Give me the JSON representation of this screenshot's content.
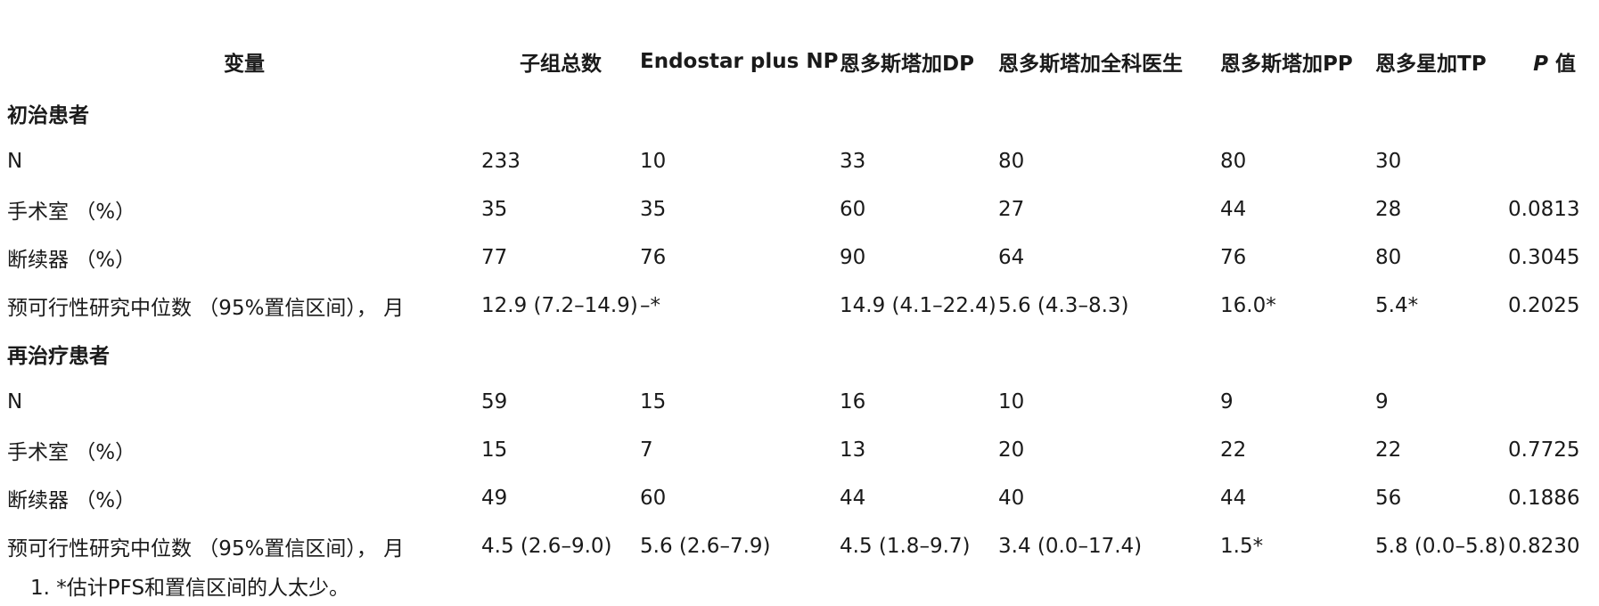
{
  "table": {
    "headers": [
      "变量",
      "子组总数",
      "Endostar plus NP",
      "恩多斯塔加DP",
      "恩多斯塔加全科医生",
      "恩多斯塔加PP",
      "恩多星加TP"
    ],
    "p_header_italic": "P",
    "p_header_rest": " 值",
    "groups": [
      {
        "title": "初治患者",
        "rows": [
          [
            "N",
            "233",
            "10",
            "33",
            "80",
            "80",
            "30",
            ""
          ],
          [
            "手术室 （%）",
            "35",
            "35",
            "60",
            "27",
            "44",
            "28",
            "0.0813"
          ],
          [
            "断续器 （%）",
            "77",
            "76",
            "90",
            "64",
            "76",
            "80",
            "0.3045"
          ],
          [
            "预可行性研究中位数 （95%置信区间），  月",
            "12.9 (7.2–14.9)",
            "–*",
            "14.9 (4.1–22.4)",
            "5.6 (4.3–8.3)",
            "16.0*",
            "5.4*",
            "0.2025"
          ]
        ]
      },
      {
        "title": "再治疗患者",
        "rows": [
          [
            "N",
            "59",
            "15",
            "16",
            "10",
            "9",
            "9",
            ""
          ],
          [
            "手术室 （%）",
            "15",
            "7",
            "13",
            "20",
            "22",
            "22",
            "0.7725"
          ],
          [
            "断续器 （%）",
            "49",
            "60",
            "44",
            "40",
            "44",
            "56",
            "0.1886"
          ],
          [
            "预可行性研究中位数 （95%置信区间），  月",
            "4.5 (2.6–9.0)",
            "5.6 (2.6–7.9)",
            "4.5 (1.8–9.7)",
            "3.4 (0.0–17.4)",
            "1.5*",
            "5.8 (0.0–5.8)",
            "0.8230"
          ]
        ]
      }
    ]
  },
  "footnote": "1. *估计PFS和置信区间的人太少。"
}
